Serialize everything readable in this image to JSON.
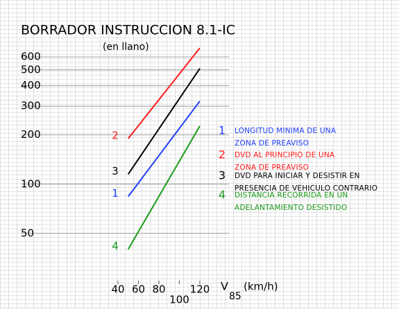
{
  "chart_data": {
    "type": "line",
    "title": "BORRADOR INSTRUCCION 8.1-IC",
    "subtitle": "(en llano)",
    "x": [
      50,
      120
    ],
    "xlim": [
      0,
      200
    ],
    "xticks": [
      40,
      60,
      80,
      100,
      120
    ],
    "xlabel": "V",
    "xlabel_sub": "85",
    "xlabel_unit": "(km/h)",
    "ylim": [
      27,
      1100
    ],
    "yticks": [
      50,
      100,
      200,
      300,
      400,
      500,
      600
    ],
    "log_y": true,
    "grid": true,
    "series": [
      {
        "label": "1",
        "name": "LONGITUD MINIMA DE UNA\nZONA DE PREAVISO",
        "color": "#1f3fff",
        "values": [
          84,
          322
        ]
      },
      {
        "label": "2",
        "name": "DVD AL PRINCIPIO DE UNA\nZONA DE PREAVISO",
        "color": "#ff1a1a",
        "values": [
          190,
          680
        ]
      },
      {
        "label": "3",
        "name": "DVD PARA INICIAR Y DESISTIR EN\nPRESENCIA DE VEHICULO CONTRARIO",
        "color": "#000000",
        "values": [
          115,
          510
        ]
      },
      {
        "label": "4",
        "name": "DISTANCIA RECORRIDA EN UN\nADELANTAMIENTO DESISTIDO",
        "color": "#1a9a1a",
        "values": [
          40,
          227
        ]
      }
    ]
  }
}
